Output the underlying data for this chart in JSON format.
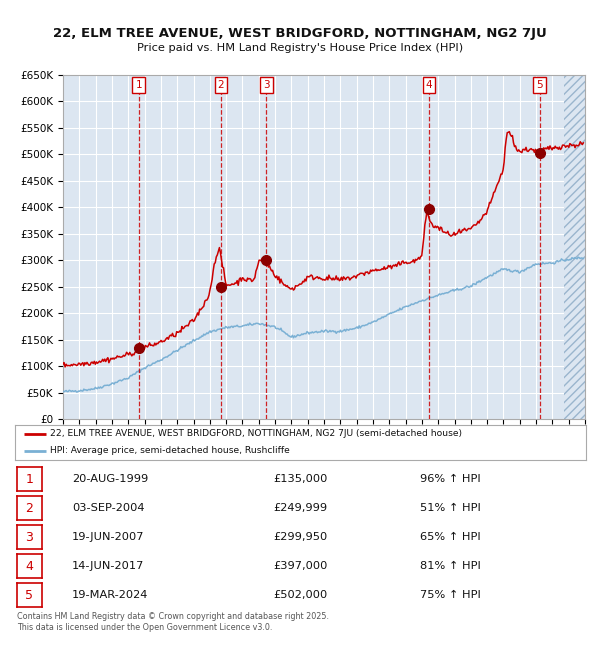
{
  "title_line1": "22, ELM TREE AVENUE, WEST BRIDGFORD, NOTTINGHAM, NG2 7JU",
  "title_line2": "Price paid vs. HM Land Registry's House Price Index (HPI)",
  "bg_color": "#dce6f1",
  "grid_color": "#ffffff",
  "red_line_color": "#cc0000",
  "blue_line_color": "#7ab0d4",
  "dashed_line_color": "#cc0000",
  "sale_points": [
    {
      "year": 1999.64,
      "price": 135000,
      "label": "1"
    },
    {
      "year": 2004.67,
      "price": 249999,
      "label": "2"
    },
    {
      "year": 2007.47,
      "price": 299950,
      "label": "3"
    },
    {
      "year": 2017.45,
      "price": 397000,
      "label": "4"
    },
    {
      "year": 2024.22,
      "price": 502000,
      "label": "5"
    }
  ],
  "legend_line1": "22, ELM TREE AVENUE, WEST BRIDGFORD, NOTTINGHAM, NG2 7JU (semi-detached house)",
  "legend_line2": "HPI: Average price, semi-detached house, Rushcliffe",
  "table_data": [
    {
      "num": "1",
      "date": "20-AUG-1999",
      "price": "£135,000",
      "hpi": "96% ↑ HPI"
    },
    {
      "num": "2",
      "date": "03-SEP-2004",
      "price": "£249,999",
      "hpi": "51% ↑ HPI"
    },
    {
      "num": "3",
      "date": "19-JUN-2007",
      "price": "£299,950",
      "hpi": "65% ↑ HPI"
    },
    {
      "num": "4",
      "date": "14-JUN-2017",
      "price": "£397,000",
      "hpi": "81% ↑ HPI"
    },
    {
      "num": "5",
      "date": "19-MAR-2024",
      "price": "£502,000",
      "hpi": "75% ↑ HPI"
    }
  ],
  "footnote": "Contains HM Land Registry data © Crown copyright and database right 2025.\nThis data is licensed under the Open Government Licence v3.0.",
  "xmin": 1995.0,
  "xmax": 2027.0,
  "ymin": 0,
  "ymax": 650000,
  "hpi_key_x": [
    1995.0,
    1996.0,
    1997.0,
    1998.0,
    1999.0,
    2000.0,
    2001.0,
    2002.0,
    2003.0,
    2004.0,
    2005.0,
    2006.0,
    2007.0,
    2008.0,
    2009.0,
    2010.0,
    2011.0,
    2012.0,
    2013.0,
    2014.0,
    2015.0,
    2016.0,
    2017.0,
    2018.0,
    2019.0,
    2020.0,
    2021.0,
    2022.0,
    2023.0,
    2024.0,
    2025.0,
    2026.0,
    2026.9
  ],
  "hpi_key_y": [
    52000,
    54000,
    58000,
    67000,
    78000,
    97000,
    112000,
    130000,
    148000,
    165000,
    173000,
    176000,
    181000,
    174000,
    155000,
    163000,
    166000,
    166000,
    172000,
    183000,
    198000,
    212000,
    224000,
    234000,
    243000,
    251000,
    268000,
    283000,
    278000,
    293000,
    295000,
    302000,
    305000
  ],
  "prop_key_x": [
    1995.0,
    1996.0,
    1997.0,
    1998.0,
    1999.0,
    1999.5,
    2000.0,
    2000.5,
    2001.0,
    2002.0,
    2003.0,
    2003.5,
    2004.0,
    2004.3,
    2004.6,
    2004.9,
    2005.0,
    2005.3,
    2005.7,
    2006.0,
    2006.3,
    2006.7,
    2007.0,
    2007.3,
    2007.6,
    2007.9,
    2008.3,
    2008.7,
    2009.0,
    2009.5,
    2010.0,
    2010.5,
    2011.0,
    2011.5,
    2012.0,
    2012.5,
    2013.0,
    2013.5,
    2014.0,
    2014.5,
    2015.0,
    2015.5,
    2016.0,
    2016.5,
    2017.0,
    2017.3,
    2017.6,
    2018.0,
    2018.5,
    2019.0,
    2019.5,
    2020.0,
    2020.5,
    2021.0,
    2021.5,
    2022.0,
    2022.2,
    2022.5,
    2022.8,
    2023.0,
    2023.3,
    2023.7,
    2024.0,
    2024.3,
    2024.6,
    2025.0,
    2025.5,
    2026.0,
    2026.5,
    2026.9
  ],
  "prop_key_y": [
    102000,
    104000,
    108000,
    114000,
    122000,
    128000,
    136000,
    140000,
    146000,
    162000,
    186000,
    210000,
    238000,
    300000,
    320000,
    270000,
    252000,
    255000,
    258000,
    268000,
    262000,
    263000,
    298000,
    302000,
    290000,
    276000,
    262000,
    250000,
    246000,
    254000,
    268000,
    268000,
    266000,
    265000,
    263000,
    266000,
    270000,
    276000,
    280000,
    283000,
    287000,
    290000,
    297000,
    297000,
    308000,
    395000,
    365000,
    362000,
    350000,
    348000,
    355000,
    358000,
    372000,
    392000,
    432000,
    472000,
    543000,
    535000,
    510000,
    505000,
    508000,
    510000,
    505000,
    507000,
    510000,
    512000,
    515000,
    516000,
    518000,
    520000
  ]
}
